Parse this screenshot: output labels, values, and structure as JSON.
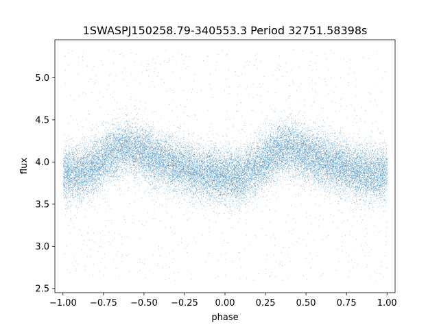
{
  "chart_data": {
    "type": "scatter",
    "title": "1SWASPJ150258.79-340553.3 Period 32751.58398s",
    "xlabel": "phase",
    "ylabel": "flux",
    "xlim": [
      -1.05,
      1.05
    ],
    "ylim": [
      2.45,
      5.45
    ],
    "xticks": [
      -1.0,
      -0.75,
      -0.5,
      -0.25,
      0.0,
      0.25,
      0.5,
      0.75,
      1.0
    ],
    "xtick_labels": [
      "−1.00",
      "−0.75",
      "−0.50",
      "−0.25",
      "0.00",
      "0.25",
      "0.50",
      "0.75",
      "1.00"
    ],
    "yticks": [
      2.5,
      3.0,
      3.5,
      4.0,
      4.5,
      5.0
    ],
    "ytick_labels": [
      "2.5",
      "3.0",
      "3.5",
      "4.0",
      "4.5",
      "5.0"
    ],
    "grid": false,
    "legend": "none",
    "point_color": "#1f77b4",
    "series": [
      {
        "trend_x": [
          -1.0,
          -0.9,
          -0.8,
          -0.7,
          -0.6,
          -0.5,
          -0.4,
          -0.3,
          -0.2,
          -0.1,
          0.0,
          0.1,
          0.2,
          0.3,
          0.4,
          0.5,
          0.6,
          0.7,
          0.8,
          0.9,
          1.0
        ],
        "trend_y": [
          3.88,
          3.86,
          3.95,
          4.12,
          4.18,
          4.1,
          4.02,
          3.96,
          3.9,
          3.86,
          3.84,
          3.83,
          3.95,
          4.12,
          4.18,
          4.1,
          4.02,
          3.96,
          3.9,
          3.86,
          3.88
        ],
        "scatter_sigma": 0.16,
        "outlier_range": [
          2.6,
          5.35
        ],
        "point_count": 26000,
        "outlier_fraction": 0.04
      }
    ]
  }
}
